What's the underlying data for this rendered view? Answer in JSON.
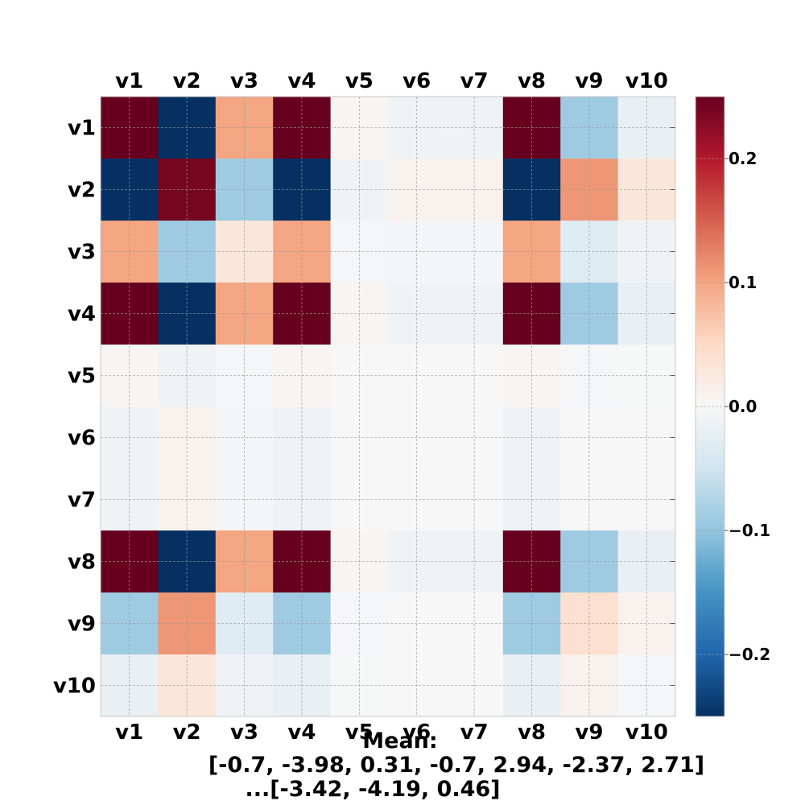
{
  "chart_data": {
    "type": "heatmap",
    "labels": [
      "v1",
      "v2",
      "v3",
      "v4",
      "v5",
      "v6",
      "v7",
      "v8",
      "v9",
      "v10"
    ],
    "values": [
      [
        0.28,
        -0.28,
        0.1,
        0.28,
        0.005,
        -0.01,
        -0.01,
        0.28,
        -0.09,
        -0.02
      ],
      [
        -0.28,
        0.24,
        -0.09,
        -0.28,
        -0.01,
        0.01,
        0.01,
        -0.28,
        0.11,
        0.03
      ],
      [
        0.1,
        -0.09,
        0.03,
        0.1,
        -0.002,
        -0.005,
        -0.005,
        0.1,
        -0.03,
        -0.01
      ],
      [
        0.28,
        -0.28,
        0.1,
        0.28,
        0.005,
        -0.01,
        -0.01,
        0.28,
        -0.09,
        -0.02
      ],
      [
        0.005,
        -0.01,
        -0.002,
        0.005,
        0.0,
        0.0,
        0.0,
        0.005,
        -0.003,
        -0.001
      ],
      [
        -0.01,
        0.01,
        -0.005,
        -0.01,
        0.0,
        0.0,
        0.0,
        -0.01,
        0.0,
        0.0
      ],
      [
        -0.01,
        0.01,
        -0.005,
        -0.01,
        0.0,
        0.0,
        0.0,
        -0.01,
        0.0,
        0.0
      ],
      [
        0.28,
        -0.28,
        0.1,
        0.28,
        0.005,
        -0.01,
        -0.01,
        0.28,
        -0.09,
        -0.02
      ],
      [
        -0.09,
        0.11,
        -0.03,
        -0.09,
        -0.003,
        0.0,
        0.0,
        -0.09,
        0.04,
        0.01
      ],
      [
        -0.02,
        0.03,
        -0.01,
        -0.02,
        -0.001,
        0.0,
        0.0,
        -0.02,
        0.01,
        -0.002
      ]
    ],
    "colorbar": {
      "colormap": "RdBu_r",
      "range": [
        -0.25,
        0.25
      ],
      "ticks": [
        -0.2,
        -0.1,
        0.0,
        0.1,
        0.2
      ],
      "tick_labels": [
        "−0.2",
        "−0.1",
        "0.0",
        "0.1",
        "0.2"
      ]
    },
    "grid": true,
    "caption_lines": [
      "Mean:",
      "[-0.7, -3.98, 0.31, -0.7, 2.94, -2.37, 2.71]",
      "...[-3.42, -4.19, 0.46]"
    ]
  }
}
